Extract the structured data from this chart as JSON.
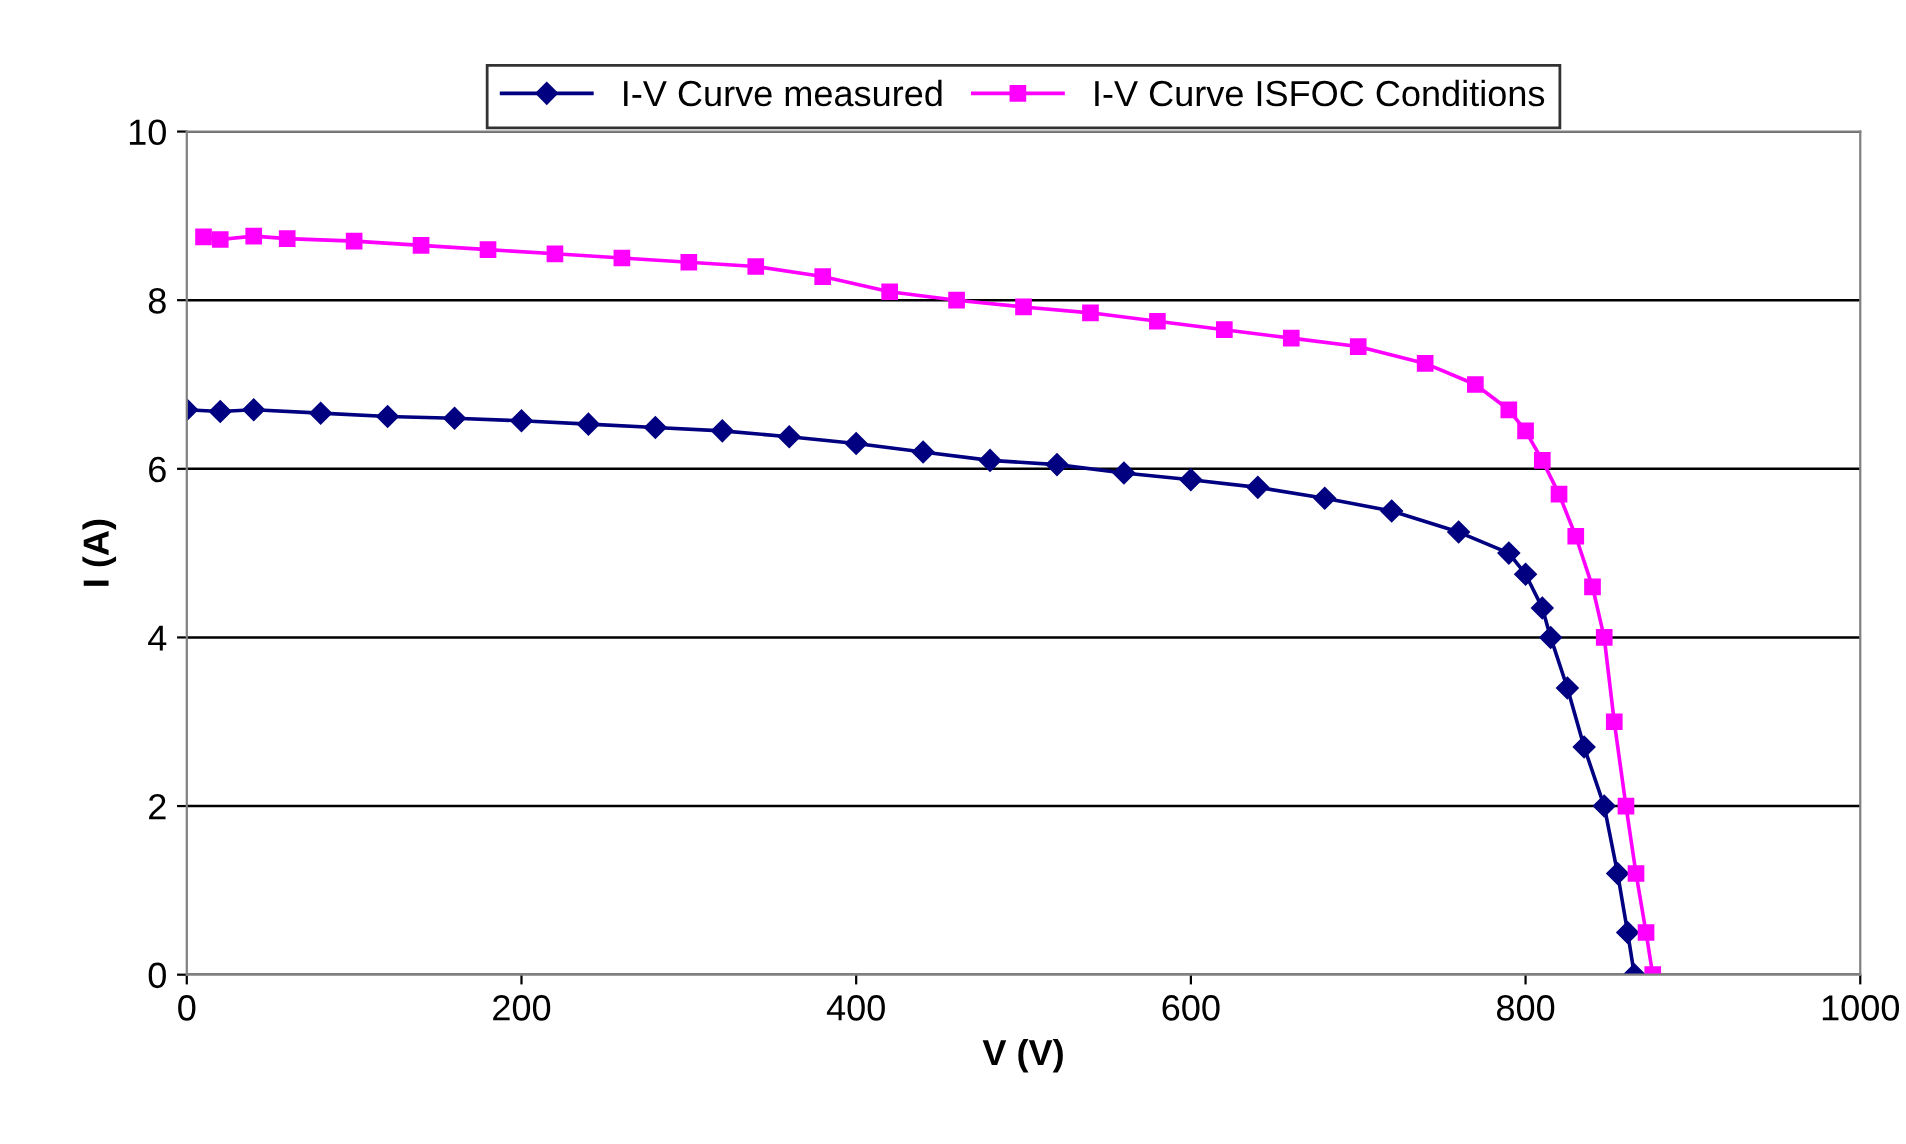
{
  "chart_data": {
    "type": "line",
    "xlabel": "V (V)",
    "ylabel": "I (A)",
    "xlim": [
      0,
      1000
    ],
    "xticks": [
      0,
      200,
      400,
      600,
      800,
      1000
    ],
    "ylim": [
      0,
      10
    ],
    "yticks": [
      0,
      2,
      4,
      6,
      8,
      10
    ],
    "grid": "y",
    "legend": "top",
    "series": [
      {
        "name": "I-V Curve measured",
        "color": "#000080",
        "marker": "diamond",
        "x": [
          0,
          20,
          40,
          80,
          120,
          160,
          200,
          240,
          280,
          320,
          360,
          400,
          440,
          480,
          520,
          560,
          600,
          640,
          680,
          720,
          760,
          790,
          800,
          810,
          815,
          825,
          835,
          847,
          855,
          861,
          865
        ],
        "values": [
          6.7,
          6.68,
          6.7,
          6.66,
          6.62,
          6.6,
          6.57,
          6.53,
          6.49,
          6.45,
          6.38,
          6.3,
          6.2,
          6.1,
          6.05,
          5.95,
          5.87,
          5.78,
          5.65,
          5.5,
          5.25,
          5.0,
          4.75,
          4.35,
          4.0,
          3.4,
          2.7,
          2.0,
          1.2,
          0.5,
          0
        ]
      },
      {
        "name": "I-V Curve ISFOC Conditions",
        "color": "#ff00ff",
        "marker": "square",
        "x": [
          10,
          20,
          40,
          60,
          100,
          140,
          180,
          220,
          260,
          300,
          340,
          380,
          420,
          460,
          500,
          540,
          580,
          620,
          660,
          700,
          740,
          770,
          790,
          800,
          810,
          820,
          830,
          840,
          847,
          853,
          860,
          866,
          872,
          876
        ],
        "values": [
          8.75,
          8.72,
          8.76,
          8.73,
          8.7,
          8.65,
          8.6,
          8.55,
          8.5,
          8.45,
          8.4,
          8.28,
          8.1,
          8.0,
          7.92,
          7.85,
          7.75,
          7.65,
          7.55,
          7.45,
          7.25,
          7.0,
          6.7,
          6.45,
          6.1,
          5.7,
          5.2,
          4.6,
          4.0,
          3.0,
          2.0,
          1.2,
          0.5,
          0
        ]
      }
    ]
  }
}
